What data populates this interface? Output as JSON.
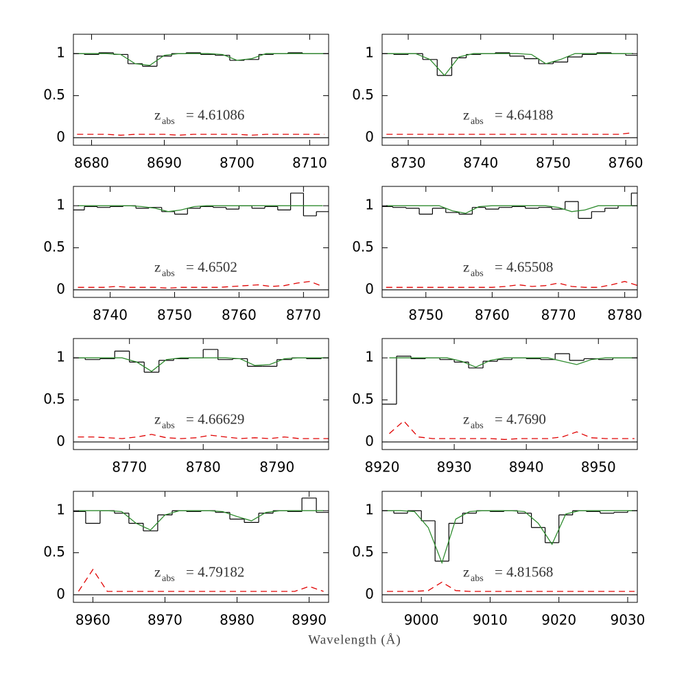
{
  "x_label": "Wavelength (Å)",
  "chart_data": [
    {
      "type": "spectrum",
      "xlim": [
        8677.5,
        8712.6
      ],
      "ylim": [
        -0.09,
        1.23
      ],
      "xticks": [
        8680,
        8690,
        8700,
        8710
      ],
      "yticks": [
        0,
        0.5,
        1
      ],
      "annotation": {
        "symbol": "z",
        "subscript": "abs",
        "text": "= 4.61086"
      },
      "flux_color": "#000000",
      "model_color": "#2e8b2e",
      "error_color": "#e00000",
      "x": [
        8678,
        8680,
        8682,
        8684,
        8686,
        8688,
        8690,
        8692,
        8694,
        8696,
        8698,
        8700,
        8702,
        8704,
        8706,
        8708,
        8710,
        8712
      ],
      "flux": [
        1.0,
        0.99,
        1.01,
        0.99,
        0.88,
        0.85,
        0.97,
        1.0,
        1.01,
        0.99,
        0.98,
        0.92,
        0.93,
        0.99,
        1.0,
        1.01,
        1.0,
        1.0
      ],
      "model": [
        1,
        1,
        1,
        0.99,
        0.88,
        0.86,
        0.98,
        1,
        1,
        1,
        0.99,
        0.92,
        0.94,
        1,
        1,
        1,
        1,
        1
      ],
      "error": [
        0.04,
        0.04,
        0.04,
        0.03,
        0.04,
        0.04,
        0.04,
        0.03,
        0.04,
        0.04,
        0.04,
        0.04,
        0.03,
        0.04,
        0.04,
        0.04,
        0.04,
        0.04
      ]
    },
    {
      "type": "spectrum",
      "xlim": [
        8726.4,
        8761.6
      ],
      "ylim": [
        -0.09,
        1.23
      ],
      "xticks": [
        8730,
        8740,
        8750,
        8760
      ],
      "yticks": [
        0,
        0.5,
        1
      ],
      "annotation": {
        "symbol": "z",
        "subscript": "abs",
        "text": "= 4.64188"
      },
      "flux_color": "#000000",
      "model_color": "#2e8b2e",
      "error_color": "#e00000",
      "x": [
        8727,
        8729,
        8731,
        8733,
        8735,
        8737,
        8739,
        8741,
        8743,
        8745,
        8747,
        8749,
        8751,
        8753,
        8755,
        8757,
        8759,
        8761
      ],
      "flux": [
        1.0,
        0.99,
        1.0,
        0.93,
        0.74,
        0.95,
        0.99,
        1.0,
        1.01,
        0.97,
        0.94,
        0.88,
        0.9,
        0.96,
        0.99,
        1.01,
        1.0,
        0.98
      ],
      "model": [
        1,
        1,
        1,
        0.93,
        0.74,
        0.96,
        1,
        1,
        1,
        1,
        0.99,
        0.88,
        0.93,
        1,
        1,
        1,
        1,
        1
      ],
      "error": [
        0.04,
        0.04,
        0.04,
        0.04,
        0.04,
        0.04,
        0.04,
        0.04,
        0.04,
        0.04,
        0.04,
        0.04,
        0.04,
        0.04,
        0.04,
        0.04,
        0.04,
        0.06
      ]
    },
    {
      "type": "spectrum",
      "xlim": [
        8734.3,
        8773.9
      ],
      "ylim": [
        -0.09,
        1.23
      ],
      "xticks": [
        8740,
        8750,
        8760,
        8770
      ],
      "yticks": [
        0,
        0.5,
        1
      ],
      "annotation": {
        "symbol": "z",
        "subscript": "abs",
        "text": "= 4.6502"
      },
      "flux_color": "#000000",
      "model_color": "#2e8b2e",
      "error_color": "#e00000",
      "x": [
        8735,
        8737,
        8739,
        8741,
        8743,
        8745,
        8747,
        8749,
        8751,
        8753,
        8755,
        8757,
        8759,
        8761,
        8763,
        8765,
        8767,
        8769,
        8771,
        8773
      ],
      "flux": [
        0.95,
        0.99,
        0.98,
        0.99,
        1.0,
        0.97,
        0.98,
        0.93,
        0.9,
        0.97,
        0.99,
        0.98,
        0.96,
        1.0,
        0.97,
        0.99,
        0.95,
        1.15,
        0.88,
        0.93
      ],
      "model": [
        1,
        1,
        1,
        1,
        1,
        0.99,
        0.97,
        0.93,
        0.95,
        0.99,
        1,
        1,
        1,
        1,
        1,
        1,
        1,
        1,
        1,
        1
      ],
      "error": [
        0.03,
        0.03,
        0.03,
        0.04,
        0.03,
        0.03,
        0.03,
        0.02,
        0.03,
        0.03,
        0.03,
        0.03,
        0.04,
        0.05,
        0.06,
        0.04,
        0.05,
        0.08,
        0.1,
        0.04
      ]
    },
    {
      "type": "spectrum",
      "xlim": [
        8743.4,
        8781.9
      ],
      "ylim": [
        -0.09,
        1.23
      ],
      "xticks": [
        8750,
        8760,
        8770,
        8780
      ],
      "yticks": [
        0,
        0.5,
        1
      ],
      "annotation": {
        "symbol": "z",
        "subscript": "abs",
        "text": "= 4.65508"
      },
      "flux_color": "#000000",
      "model_color": "#2e8b2e",
      "error_color": "#e00000",
      "x": [
        8744,
        8746,
        8748,
        8750,
        8752,
        8754,
        8756,
        8758,
        8760,
        8762,
        8764,
        8766,
        8768,
        8770,
        8772,
        8774,
        8776,
        8778,
        8780,
        8782
      ],
      "flux": [
        0.99,
        0.98,
        0.97,
        0.9,
        0.97,
        0.92,
        0.9,
        0.98,
        0.96,
        0.98,
        0.99,
        0.97,
        0.98,
        0.96,
        1.05,
        0.85,
        0.93,
        0.97,
        1.0,
        1.15
      ],
      "model": [
        1,
        1,
        1,
        1,
        1,
        0.94,
        0.91,
        0.99,
        1,
        1,
        1,
        1,
        1,
        0.98,
        0.93,
        0.95,
        1,
        1,
        1,
        1
      ],
      "error": [
        0.03,
        0.03,
        0.03,
        0.03,
        0.03,
        0.03,
        0.03,
        0.03,
        0.03,
        0.04,
        0.06,
        0.04,
        0.05,
        0.08,
        0.04,
        0.03,
        0.03,
        0.06,
        0.1,
        0.05
      ]
    },
    {
      "type": "spectrum",
      "xlim": [
        8762.4,
        8797.0
      ],
      "ylim": [
        -0.09,
        1.23
      ],
      "xticks": [
        8770,
        8780,
        8790
      ],
      "yticks": [
        0,
        0.5,
        1
      ],
      "annotation": {
        "symbol": "z",
        "subscript": "abs",
        "text": "= 4.66629"
      },
      "flux_color": "#000000",
      "model_color": "#2e8b2e",
      "error_color": "#e00000",
      "x": [
        8763,
        8765,
        8767,
        8769,
        8771,
        8773,
        8775,
        8777,
        8779,
        8781,
        8783,
        8785,
        8787,
        8789,
        8791,
        8793,
        8795,
        8797
      ],
      "flux": [
        1.0,
        0.98,
        0.99,
        1.08,
        0.95,
        0.83,
        0.97,
        0.99,
        1.0,
        1.1,
        0.98,
        0.99,
        0.9,
        0.9,
        0.98,
        1.0,
        0.99,
        1.0
      ],
      "model": [
        1,
        1,
        1,
        1,
        0.95,
        0.84,
        0.98,
        1,
        1,
        1,
        1,
        0.99,
        0.91,
        0.92,
        0.99,
        1,
        1,
        1
      ],
      "error": [
        0.06,
        0.06,
        0.05,
        0.04,
        0.06,
        0.09,
        0.05,
        0.04,
        0.05,
        0.08,
        0.06,
        0.04,
        0.05,
        0.04,
        0.06,
        0.04,
        0.04,
        0.04
      ]
    },
    {
      "type": "spectrum",
      "xlim": [
        8920,
        8955.4
      ],
      "ylim": [
        -0.09,
        1.23
      ],
      "xticks": [
        8920,
        8930,
        8940,
        8950
      ],
      "yticks": [
        0,
        0.5,
        1
      ],
      "annotation": {
        "symbol": "z",
        "subscript": "abs",
        "text": "= 4.7690"
      },
      "flux_color": "#000000",
      "model_color": "#2e8b2e",
      "error_color": "#e00000",
      "x": [
        8921,
        8923,
        8925,
        8927,
        8929,
        8931,
        8933,
        8935,
        8937,
        8939,
        8941,
        8943,
        8945,
        8947,
        8949,
        8951,
        8953,
        8955
      ],
      "flux": [
        0.45,
        1.02,
        0.99,
        1.0,
        0.98,
        0.95,
        0.88,
        0.96,
        0.98,
        1.0,
        0.99,
        0.98,
        1.05,
        0.97,
        0.99,
        0.98,
        1.0,
        1.0
      ],
      "model": [
        1,
        1,
        1,
        1,
        1,
        0.96,
        0.89,
        0.97,
        1,
        1,
        1,
        1,
        0.96,
        0.92,
        0.98,
        1,
        1,
        1
      ],
      "error": [
        0.1,
        0.25,
        0.06,
        0.04,
        0.04,
        0.04,
        0.04,
        0.04,
        0.03,
        0.04,
        0.04,
        0.04,
        0.06,
        0.12,
        0.05,
        0.04,
        0.04,
        0.04
      ]
    },
    {
      "type": "spectrum",
      "xlim": [
        8957.3,
        8992.7
      ],
      "ylim": [
        -0.09,
        1.23
      ],
      "xticks": [
        8960,
        8970,
        8980,
        8990
      ],
      "yticks": [
        0,
        0.5,
        1
      ],
      "annotation": {
        "symbol": "z",
        "subscript": "abs",
        "text": "= 4.79182"
      },
      "flux_color": "#000000",
      "model_color": "#2e8b2e",
      "error_color": "#e00000",
      "x": [
        8958,
        8960,
        8962,
        8964,
        8966,
        8968,
        8970,
        8972,
        8974,
        8976,
        8978,
        8980,
        8982,
        8984,
        8986,
        8988,
        8990,
        8992
      ],
      "flux": [
        0.99,
        0.85,
        1.0,
        0.97,
        0.85,
        0.76,
        0.95,
        1.0,
        0.99,
        1.0,
        0.98,
        0.9,
        0.86,
        0.97,
        1.0,
        0.99,
        1.15,
        0.98
      ],
      "model": [
        1,
        1,
        1,
        0.99,
        0.85,
        0.77,
        0.95,
        1,
        1,
        1,
        0.99,
        0.93,
        0.88,
        0.98,
        1,
        1,
        1,
        1
      ],
      "error": [
        0.04,
        0.3,
        0.04,
        0.04,
        0.04,
        0.04,
        0.04,
        0.04,
        0.04,
        0.04,
        0.04,
        0.04,
        0.04,
        0.04,
        0.04,
        0.04,
        0.1,
        0.04
      ]
    },
    {
      "type": "spectrum",
      "xlim": [
        8994.3,
        9031.4
      ],
      "ylim": [
        -0.09,
        1.23
      ],
      "xticks": [
        9000,
        9010,
        9020,
        9030
      ],
      "yticks": [
        0,
        0.5,
        1
      ],
      "annotation": {
        "symbol": "z",
        "subscript": "abs",
        "text": "= 4.81568"
      },
      "flux_color": "#000000",
      "model_color": "#2e8b2e",
      "error_color": "#e00000",
      "x": [
        8995,
        8997,
        8999,
        9001,
        9003,
        9005,
        9007,
        9009,
        9011,
        9013,
        9015,
        9017,
        9019,
        9021,
        9023,
        9025,
        9027,
        9029,
        9031
      ],
      "flux": [
        1.0,
        0.97,
        1.0,
        0.88,
        0.4,
        0.85,
        0.97,
        1.0,
        0.99,
        1.0,
        0.97,
        0.8,
        0.62,
        0.95,
        1.0,
        0.99,
        0.97,
        0.98,
        1.0
      ],
      "model": [
        1,
        1,
        0.99,
        0.8,
        0.38,
        0.9,
        0.99,
        1,
        1,
        1,
        0.99,
        0.85,
        0.6,
        0.96,
        1,
        1,
        1,
        1,
        1
      ],
      "error": [
        0.04,
        0.04,
        0.04,
        0.05,
        0.15,
        0.05,
        0.04,
        0.04,
        0.04,
        0.04,
        0.04,
        0.04,
        0.04,
        0.04,
        0.04,
        0.04,
        0.04,
        0.04,
        0.04
      ]
    }
  ]
}
